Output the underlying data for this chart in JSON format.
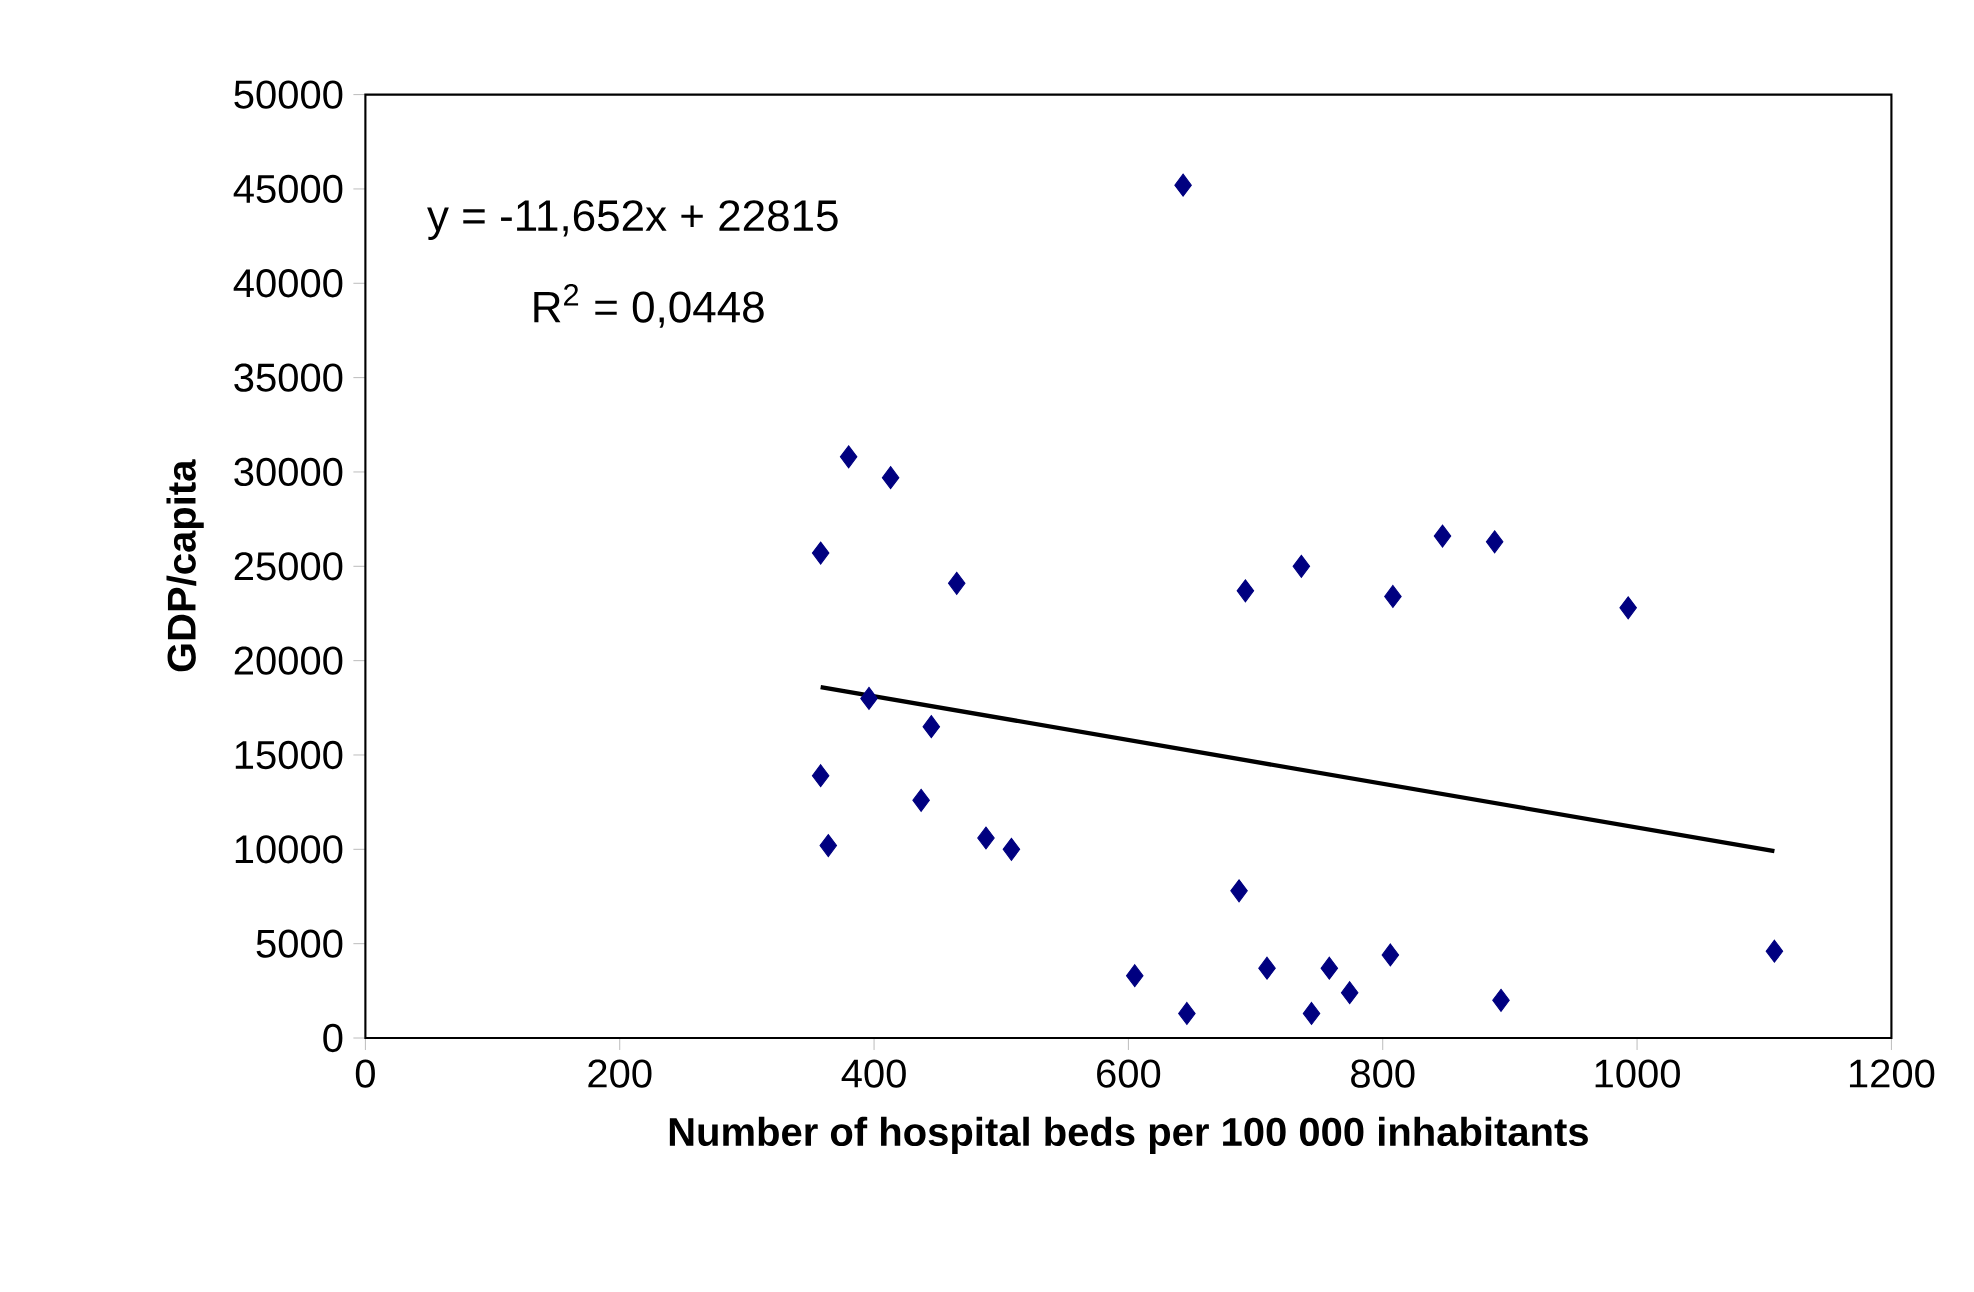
{
  "chart_data": {
    "type": "scatter",
    "xlabel": "Number of hospital beds per 100 000 inhabitants",
    "ylabel": "GDP/capita",
    "xlim": [
      0,
      1200
    ],
    "xticks": [
      0,
      200,
      400,
      600,
      800,
      1000,
      1200
    ],
    "ylim": [
      0,
      50000
    ],
    "yticks": [
      0,
      5000,
      10000,
      15000,
      20000,
      25000,
      30000,
      35000,
      40000,
      45000,
      50000
    ],
    "grid": false,
    "annotations": [
      "y = -11,652x + 22815",
      "R$^{2}$ = 0,0448"
    ],
    "series": [
      {
        "color": "#000080",
        "marker": "diamond",
        "x": [
          380,
          413,
          358,
          465,
          396,
          445,
          358,
          437,
          364,
          488,
          508,
          605,
          643,
          692,
          736,
          808,
          847,
          888,
          993,
          687,
          646,
          709,
          744,
          758,
          774,
          806,
          893,
          1108
        ],
        "values": [
          30800,
          29700,
          25700,
          24100,
          18000,
          16500,
          13900,
          12600,
          10200,
          10600,
          10000,
          3300,
          45200,
          23700,
          25000,
          23400,
          26600,
          26300,
          22800,
          7800,
          1300,
          3700,
          1300,
          3700,
          2400,
          4400,
          2000,
          4600
        ]
      },
      {
        "type": "line",
        "color": "#000000",
        "marker": "none",
        "line_style": "solid",
        "x": [
          358,
          1108
        ],
        "values": [
          18600,
          9900
        ]
      }
    ]
  }
}
